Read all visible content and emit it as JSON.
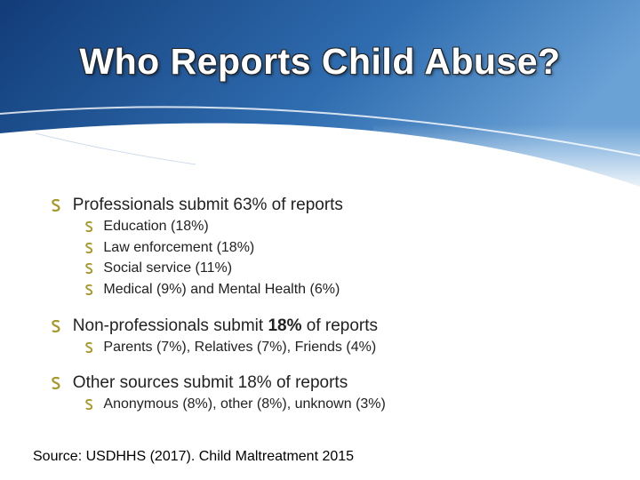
{
  "title": "Who Reports Child Abuse?",
  "bullets": [
    {
      "text": [
        "Professionals submit 63% of reports"
      ],
      "sub": [
        "Education (18%)",
        "Law enforcement (18%)",
        "Social service (11%)",
        "Medical (9%) and Mental Health (6%)"
      ]
    },
    {
      "text": [
        "Non-professionals submit ",
        "18%",
        " of reports"
      ],
      "sub": [
        "Parents (7%), Relatives (7%), Friends (4%)"
      ]
    },
    {
      "text": [
        "Other sources submit 18% of reports"
      ],
      "sub": [
        "Anonymous (8%), other (8%), unknown (3%)"
      ]
    }
  ],
  "source": "Source: USDHHS (2017). Child Maltreatment 2015"
}
